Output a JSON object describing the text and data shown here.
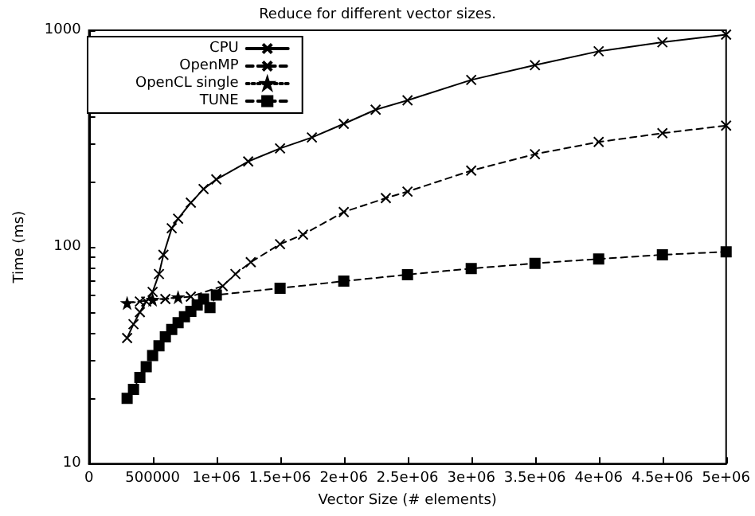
{
  "chart_data": {
    "type": "line",
    "title": "Reduce for different vector sizes.",
    "xlabel": "Vector Size (# elements)",
    "ylabel": "Time (ms)",
    "log": "y",
    "grid": false,
    "legend": "top left",
    "xlim": [
      0,
      5000000
    ],
    "ylim": [
      10,
      1000
    ],
    "xticks": [
      0,
      500000,
      {
        "value": 1000000,
        "label": "1e+06"
      },
      {
        "value": 1500000,
        "label": "1.5e+06"
      },
      {
        "value": 2000000,
        "label": "2e+06"
      },
      {
        "value": 2500000,
        "label": "2.5e+06"
      },
      {
        "value": 3000000,
        "label": "3e+06"
      },
      {
        "value": 3500000,
        "label": "3.5e+06"
      },
      {
        "value": 4000000,
        "label": "4e+06"
      },
      {
        "value": 4500000,
        "label": "4.5e+06"
      },
      {
        "value": 5000000,
        "label": "5e+06"
      }
    ],
    "yticks": [
      10,
      {
        "value": 20,
        "label": null
      },
      {
        "value": 30,
        "label": null
      },
      {
        "value": 40,
        "label": null
      },
      {
        "value": 50,
        "label": null
      },
      {
        "value": 60,
        "label": null
      },
      {
        "value": 70,
        "label": null
      },
      {
        "value": 80,
        "label": null
      },
      {
        "value": 90,
        "label": null
      },
      100,
      {
        "value": 200,
        "label": null
      },
      {
        "value": 300,
        "label": null
      },
      {
        "value": 400,
        "label": null
      },
      {
        "value": 500,
        "label": null
      },
      {
        "value": 600,
        "label": null
      },
      {
        "value": 700,
        "label": null
      },
      {
        "value": 800,
        "label": null
      },
      {
        "value": 900,
        "label": null
      },
      1000
    ],
    "series": [
      {
        "name": "CPU",
        "color": "#000000",
        "marker": "cross",
        "line_style": "solid",
        "x": [
          300000,
          350000,
          400000,
          450000,
          500000,
          550000,
          585000,
          650000,
          700000,
          800000,
          900000,
          1000000,
          1250000,
          1500000,
          1750000,
          2000000,
          2250000,
          2500000,
          3000000,
          3500000,
          4000000,
          4500000,
          5000000
        ],
        "values": [
          38,
          44,
          50,
          56,
          62,
          75,
          92,
          122,
          135,
          160,
          185,
          205,
          248,
          285,
          320,
          370,
          430,
          475,
          590,
          690,
          800,
          880,
          955
        ]
      },
      {
        "name": "OpenMP",
        "color": "#000000",
        "marker": "cross",
        "line_style": "dashed",
        "x": [
          400000,
          600000,
          800000,
          1050000,
          1150000,
          1270000,
          1500000,
          1680000,
          2000000,
          2330000,
          2500000,
          3000000,
          3500000,
          4000000,
          4500000,
          5000000
        ],
        "values": [
          56,
          57.5,
          59,
          66,
          75,
          85,
          103,
          114,
          145,
          168,
          180,
          225,
          268,
          305,
          335,
          363
        ]
      },
      {
        "name": "OpenCL single",
        "color": "#000000",
        "marker": "star",
        "line_style": "dotted",
        "x": [
          300000,
          500000,
          700000
        ],
        "values": [
          55,
          57,
          58.5
        ]
      },
      {
        "name": "TUNE",
        "color": "#000000",
        "marker": "square",
        "line_style": "dashed",
        "x": [
          300000,
          350000,
          400000,
          450000,
          500000,
          550000,
          600000,
          650000,
          700000,
          750000,
          800000,
          850000,
          900000,
          950000,
          1000000,
          1500000,
          2000000,
          2500000,
          3000000,
          3500000,
          4000000,
          4500000,
          5000000
        ],
        "values": [
          20,
          22,
          25,
          28,
          31.5,
          35,
          38.5,
          41.6,
          44.7,
          47.6,
          50.4,
          54,
          57.5,
          52.5,
          60,
          64.5,
          69.5,
          74.5,
          79.5,
          84,
          88,
          92,
          95
        ]
      }
    ]
  }
}
